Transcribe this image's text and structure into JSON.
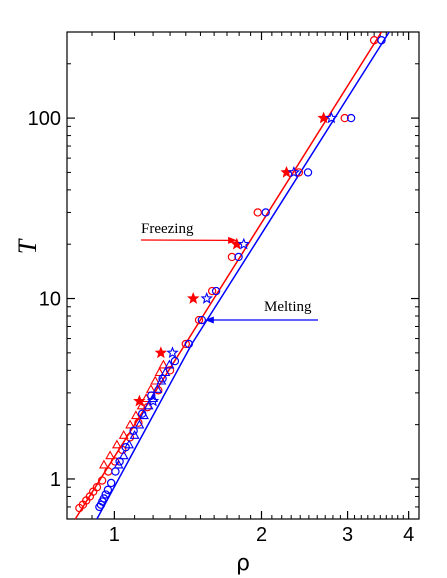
{
  "chart_data": {
    "type": "scatter",
    "xscale": "log",
    "yscale": "log",
    "xlim": [
      0.8,
      4.2
    ],
    "ylim": [
      0.6,
      300
    ],
    "xlabel": "ρ",
    "ylabel": "T",
    "xticks": [
      1,
      2,
      3,
      4
    ],
    "xtick_labels": [
      "1",
      "2",
      "3",
      "4"
    ],
    "yticks": [
      1,
      10,
      100
    ],
    "ytick_labels": [
      "1",
      "10",
      "100"
    ],
    "grid": false,
    "annotations": [
      {
        "text": "Freezing",
        "series": "freezing",
        "color": "#ff0000",
        "points_to": [
          1.8,
          21
        ]
      },
      {
        "text": "Melting",
        "series": "melting",
        "color": "#0000ff",
        "points_to": [
          1.51,
          7.6
        ]
      }
    ],
    "series": [
      {
        "id": "freezing",
        "color": "#ff0000",
        "fit_line": {
          "x": [
            0.832,
            3.52
          ],
          "y": [
            0.6,
            300
          ]
        },
        "markers": {
          "circle": {
            "x": [
              0.848,
              0.862,
              0.876,
              0.891,
              0.905,
              0.921,
              0.944,
              0.972,
              1.003,
              1.038,
              1.076,
              1.12,
              1.169,
              1.23,
              1.3,
              1.4,
              1.49,
              1.585,
              1.74,
              1.965,
              2.385,
              2.96,
              3.4
            ],
            "y": [
              0.69,
              0.72,
              0.76,
              0.8,
              0.85,
              0.9,
              0.98,
              1.1,
              1.25,
              1.45,
              1.7,
              2.05,
              2.5,
              3.1,
              4.0,
              5.6,
              7.6,
              11.0,
              17.0,
              30.0,
              50.0,
              100.0,
              270.0
            ]
          },
          "star": {
            "x": [
              1.125,
              1.245,
              1.45,
              1.78,
              2.25,
              2.68
            ],
            "y": [
              2.7,
              5.0,
              10.0,
              20.0,
              50.0,
              100.0
            ]
          },
          "triangle": {
            "x": [
              0.952,
              0.98,
              1.012,
              1.045,
              1.077,
              1.107,
              1.137,
              1.162,
              1.188,
              1.212,
              1.237,
              1.26
            ],
            "y": [
              1.2,
              1.35,
              1.55,
              1.75,
              2.0,
              2.25,
              2.55,
              2.8,
              3.15,
              3.5,
              3.9,
              4.3
            ]
          }
        }
      },
      {
        "id": "melting",
        "color": "#0000ff",
        "fit_line": {
          "x": [
            0.921,
            1.44,
            3.65
          ],
          "y": [
            0.6,
            5.6,
            300
          ]
        },
        "markers": {
          "circle": {
            "x": [
              0.932,
              0.939,
              0.945,
              0.952,
              0.96,
              0.97,
              0.985,
              1.005,
              1.025,
              1.055,
              1.095,
              1.14,
              1.19,
              1.255,
              1.33,
              1.42,
              1.51,
              1.615,
              1.795,
              2.04,
              2.49,
              3.05,
              3.52
            ],
            "y": [
              0.7,
              0.72,
              0.75,
              0.78,
              0.82,
              0.87,
              0.95,
              1.1,
              1.25,
              1.5,
              1.85,
              2.3,
              2.9,
              3.6,
              4.5,
              5.6,
              7.6,
              11.0,
              17.0,
              30.0,
              50.0,
              100.0,
              270.0
            ]
          },
          "star": {
            "x": [
              1.2,
              1.315,
              1.545,
              1.84,
              2.33,
              2.78
            ],
            "y": [
              2.7,
              5.0,
              10.0,
              20.0,
              50.0,
              100.0
            ]
          },
          "triangle": {
            "x": [
              1.02,
              1.045,
              1.072,
              1.1,
              1.125,
              1.15,
              1.175,
              1.2,
              1.225,
              1.248,
              1.272,
              1.296
            ],
            "y": [
              1.2,
              1.35,
              1.55,
              1.75,
              2.0,
              2.25,
              2.55,
              2.8,
              3.15,
              3.5,
              3.9,
              4.3
            ]
          }
        }
      }
    ]
  }
}
